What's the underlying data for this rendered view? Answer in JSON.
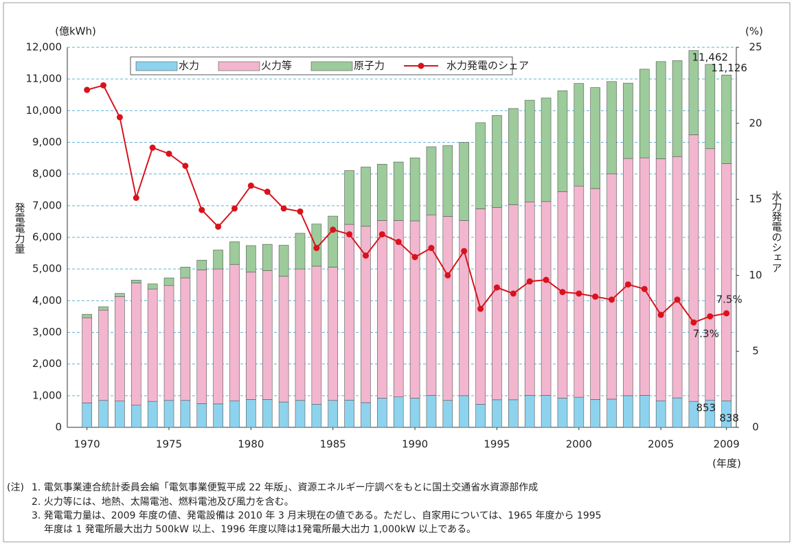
{
  "chart_data": {
    "type": "bar",
    "y_unit_label": "(億kWh)",
    "y2_unit_label": "(%)",
    "ylabel": "発電電力量",
    "y2label": "水力発電のシェア",
    "x_unit_label": "(年度)",
    "x": [
      1970,
      1971,
      1972,
      1973,
      1974,
      1975,
      1976,
      1977,
      1978,
      1979,
      1980,
      1981,
      1982,
      1983,
      1984,
      1985,
      1986,
      1987,
      1988,
      1989,
      1990,
      1991,
      1992,
      1993,
      1994,
      1995,
      1996,
      1997,
      1998,
      1999,
      2000,
      2001,
      2002,
      2003,
      2004,
      2005,
      2006,
      2007,
      2008,
      2009
    ],
    "xlim": [
      1968.8,
      2009.6
    ],
    "xticks": [
      1970,
      1975,
      1980,
      1985,
      1990,
      1995,
      2000,
      2005,
      2009
    ],
    "ylim": [
      0,
      12000
    ],
    "yticks": [
      0,
      {
        "value": 1000,
        "label": "1,000"
      },
      {
        "value": 2000,
        "label": "2,000"
      },
      {
        "value": 3000,
        "label": "3,000"
      },
      {
        "value": 4000,
        "label": "4,000"
      },
      {
        "value": 5000,
        "label": "5,000"
      },
      {
        "value": 6000,
        "label": "6,000"
      },
      {
        "value": 7000,
        "label": "7,000"
      },
      {
        "value": 8000,
        "label": "8,000"
      },
      {
        "value": 9000,
        "label": "9,000"
      },
      {
        "value": 10000,
        "label": "10,000"
      },
      {
        "value": 11000,
        "label": "11,000"
      },
      {
        "value": 12000,
        "label": "12,000"
      }
    ],
    "y2lim": [
      0,
      25
    ],
    "y2ticks": [
      0,
      5,
      10,
      15,
      20,
      25
    ],
    "grid": true,
    "series": [
      {
        "name": "水力",
        "color": "#8dd3ee",
        "values": [
          770,
          850,
          830,
          700,
          820,
          850,
          850,
          750,
          740,
          840,
          880,
          880,
          800,
          850,
          730,
          850,
          860,
          780,
          920,
          960,
          920,
          1010,
          850,
          1000,
          730,
          870,
          870,
          1010,
          1010,
          920,
          950,
          880,
          890,
          1000,
          1010,
          840,
          930,
          820,
          853,
          838
        ],
        "value_labels": [
          null,
          null,
          null,
          null,
          null,
          null,
          null,
          null,
          null,
          null,
          null,
          null,
          null,
          null,
          null,
          null,
          null,
          null,
          null,
          null,
          null,
          null,
          null,
          null,
          null,
          null,
          null,
          null,
          null,
          null,
          null,
          null,
          null,
          null,
          null,
          null,
          null,
          null,
          "853",
          "838"
        ]
      },
      {
        "name": "火力等",
        "color": "#f2b6cf",
        "values": [
          2690,
          2850,
          3300,
          3860,
          3550,
          3630,
          3870,
          4220,
          4260,
          4300,
          4020,
          4070,
          3970,
          4150,
          4360,
          4210,
          5550,
          5570,
          5610,
          5570,
          5600,
          5700,
          5810,
          5530,
          6170,
          6070,
          6160,
          6110,
          6120,
          6520,
          6670,
          6660,
          7110,
          7490,
          7500,
          7640,
          7620,
          8420,
          7947,
          7492
        ]
      },
      {
        "name": "原子力",
        "color": "#9dcb9b",
        "values": [
          110,
          110,
          100,
          90,
          160,
          240,
          340,
          310,
          600,
          720,
          840,
          830,
          980,
          1130,
          1330,
          1610,
          1700,
          1870,
          1780,
          1850,
          1990,
          2150,
          2240,
          2470,
          2720,
          2910,
          3040,
          3210,
          3270,
          3190,
          3240,
          3190,
          2920,
          2380,
          2800,
          3070,
          3030,
          2660,
          2662,
          2796
        ]
      },
      {
        "name": "水力発電のシェア",
        "color": "#d9121b",
        "type": "line",
        "axis": "y2",
        "values": [
          22.2,
          22.5,
          20.4,
          15.1,
          18.4,
          18.0,
          17.2,
          14.3,
          13.2,
          14.4,
          15.9,
          15.5,
          14.4,
          14.2,
          11.8,
          13.0,
          12.7,
          11.3,
          12.7,
          12.2,
          11.2,
          11.8,
          10.0,
          11.6,
          7.8,
          9.2,
          8.8,
          9.6,
          9.7,
          8.9,
          8.8,
          8.6,
          8.4,
          9.4,
          9.1,
          7.4,
          8.4,
          6.9,
          7.3,
          7.5
        ],
        "value_labels": [
          null,
          null,
          null,
          null,
          null,
          null,
          null,
          null,
          null,
          null,
          null,
          null,
          null,
          null,
          null,
          null,
          null,
          null,
          null,
          null,
          null,
          null,
          null,
          null,
          null,
          null,
          null,
          null,
          null,
          null,
          null,
          null,
          null,
          null,
          null,
          null,
          null,
          null,
          "7.3%",
          "7.5%"
        ]
      }
    ],
    "total_labels": [
      {
        "value": 11462,
        "label": "11,462"
      },
      {
        "value": 11126,
        "label": "11,126"
      }
    ],
    "notes_prefix": "(注)",
    "notes": [
      "1. 電気事業連合統計委員会編「電気事業便覧平成 22 年版」、資源エネルギー庁調べをもとに国土交通省水資源部作成",
      "2. 火力等には、地熱、太陽電池、燃料電池及び風力を含む。",
      "3. 発電電力量は、2009 年度の値、発電設備は 2010 年 3 月末現在の値である。ただし、自家用については、1965 年度から 1995",
      "年度は 1 発電所最大出力 500kW 以上、1996 年度以降は1発電所最大出力 1,000kW 以上である。"
    ]
  }
}
